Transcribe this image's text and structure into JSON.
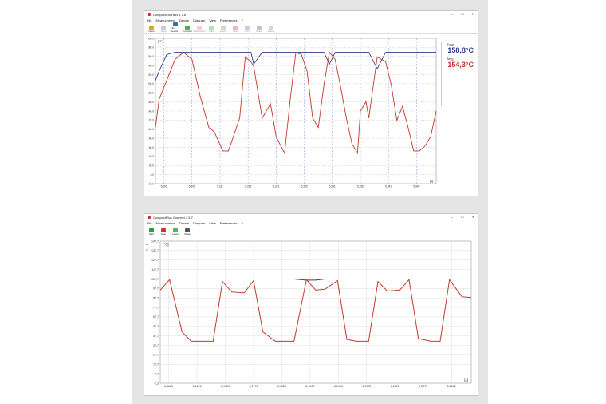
{
  "window1": {
    "title": "CompactConnect 1.7.8",
    "menu": [
      "File",
      "Measurement",
      "Device",
      "Diagram",
      "View",
      "Preferences",
      "?"
    ],
    "toolbar": [
      {
        "label": "Open",
        "icon": "folder-open-icon",
        "enabled": true
      },
      {
        "label": "Save",
        "icon": "save-icon",
        "enabled": false
      },
      {
        "label": "Find Device",
        "icon": "find-device-icon",
        "enabled": true
      },
      {
        "label": "Connect",
        "icon": "connect-icon",
        "enabled": true
      },
      {
        "label": "Disconnect",
        "icon": "disconnect-icon",
        "enabled": false
      },
      {
        "label": "Start",
        "icon": "start-icon",
        "enabled": false
      },
      {
        "label": "Pause",
        "icon": "pause-icon",
        "enabled": false
      },
      {
        "label": "Stop",
        "icon": "stop-icon",
        "enabled": false
      },
      {
        "label": "Info",
        "icon": "info-icon",
        "enabled": false
      },
      {
        "label": "Setup",
        "icon": "setup-icon",
        "enabled": false
      },
      {
        "label": "Delete",
        "icon": "delete-icon",
        "enabled": false
      }
    ],
    "unit": "[°C]",
    "xunit": "[s]",
    "yticks": [
      "300,0",
      "280,0",
      "260,0",
      "240,0",
      "220,0",
      "200,0",
      "180,0",
      "160,0",
      "140,0",
      "120,0",
      "100,0",
      "80,0",
      "60,0",
      "40,0",
      "20,0",
      "0,0",
      "-10,0"
    ],
    "xticks": [
      "5,301",
      "5,306",
      "5,311",
      "5,316",
      "5,321",
      "5,326",
      "5,331",
      "5,336",
      "5,341",
      "5,346"
    ],
    "readout": {
      "label1": "Tmax",
      "value1": "158,8°C",
      "label2": "Tavg",
      "value2": "154,3°C"
    },
    "colors": {
      "max": "#2c3e8c",
      "avg": "#c0392b"
    }
  },
  "window2": {
    "title": "CompactPlus Connect 1.5.7",
    "menu": [
      "File",
      "Measurement",
      "Device",
      "Diagram",
      "View",
      "Preferences",
      "?"
    ],
    "toolbar": [
      {
        "label": "Start",
        "icon": "start-icon",
        "enabled": true
      },
      {
        "label": "Stop",
        "icon": "stop-icon",
        "enabled": true
      },
      {
        "label": "Leave",
        "icon": "leave-icon",
        "enabled": true
      },
      {
        "label": "Setup",
        "icon": "setup-icon",
        "enabled": true
      }
    ],
    "unit": "[°C]",
    "xunit": "[s]",
    "yticks": [
      "147,7",
      "137,7",
      "127,7",
      "117,7",
      "107,7",
      "97,7",
      "87,7",
      "77,7",
      "67,7",
      "57,7",
      "47,7",
      "37,7",
      "27,7",
      "17,7",
      "7,7",
      "-2,3"
    ],
    "xticks": [
      "6,1626",
      "6,1676",
      "6,1726",
      "6,1776",
      "6,1826",
      "6,1876",
      "6,1926",
      "6,1976",
      "6,2026",
      "6,2076",
      "6,2126"
    ]
  },
  "chart_data": [
    {
      "type": "line",
      "title": "",
      "ylabel": "[°C]",
      "xlabel": "[s]",
      "ylim": [
        -10,
        300
      ],
      "grid": true,
      "x_positions": [
        0,
        0.013,
        0.04,
        0.07,
        0.1,
        0.13,
        0.16,
        0.19,
        0.21,
        0.24,
        0.26,
        0.28,
        0.3,
        0.32,
        0.34,
        0.35,
        0.38,
        0.41,
        0.43,
        0.46,
        0.48,
        0.5,
        0.52,
        0.54,
        0.56,
        0.58,
        0.6,
        0.62,
        0.64,
        0.66,
        0.68,
        0.7,
        0.72,
        0.73,
        0.75,
        0.76,
        0.79,
        0.82,
        0.84,
        0.86,
        0.88,
        0.9,
        0.92,
        0.94,
        0.96,
        0.98,
        1.0
      ],
      "series": [
        {
          "name": "max",
          "values": [
            210,
            230,
            265,
            270,
            270,
            270,
            270,
            270,
            270,
            270,
            270,
            270,
            270,
            270,
            270,
            245,
            270,
            270,
            270,
            270,
            270,
            270,
            270,
            270,
            270,
            270,
            270,
            245,
            270,
            270,
            270,
            270,
            270,
            270,
            270,
            270,
            235,
            270,
            270,
            270,
            270,
            270,
            270,
            270,
            270,
            270,
            270
          ]
        },
        {
          "name": "avg",
          "values": [
            110,
            170,
            210,
            255,
            270,
            255,
            175,
            110,
            100,
            60,
            60,
            95,
            130,
            260,
            250,
            240,
            130,
            160,
            90,
            55,
            170,
            270,
            265,
            230,
            130,
            110,
            200,
            270,
            255,
            195,
            130,
            75,
            55,
            145,
            165,
            130,
            260,
            250,
            200,
            125,
            155,
            110,
            60,
            60,
            70,
            90,
            145
          ]
        }
      ]
    },
    {
      "type": "line",
      "title": "",
      "ylabel": "[°C]",
      "xlabel": "[s]",
      "ylim": [
        -2.3,
        147.7
      ],
      "grid": true,
      "x_positions": [
        0,
        0.03,
        0.07,
        0.1,
        0.13,
        0.17,
        0.2,
        0.23,
        0.27,
        0.3,
        0.33,
        0.37,
        0.4,
        0.43,
        0.47,
        0.5,
        0.53,
        0.57,
        0.6,
        0.63,
        0.67,
        0.7,
        0.73,
        0.77,
        0.8,
        0.83,
        0.87,
        0.9,
        0.93,
        0.97,
        1.0
      ],
      "series": [
        {
          "name": "max",
          "values": [
            107.7,
            107.7,
            107.7,
            107.7,
            107.7,
            107.7,
            107.7,
            107.7,
            107.7,
            107.7,
            107.7,
            107.7,
            107.7,
            107.7,
            106.5,
            106.5,
            107.7,
            107.7,
            107.7,
            107.7,
            107.7,
            107.7,
            107.7,
            107.7,
            107.7,
            107.7,
            107.7,
            107.7,
            107.7,
            107.7,
            107.7
          ]
        },
        {
          "name": "avg",
          "values": [
            96,
            107,
            52,
            42,
            42,
            42,
            105,
            94,
            93,
            106,
            52,
            42,
            42,
            42,
            107,
            96,
            97,
            106,
            44,
            42,
            42,
            105,
            95,
            96,
            107,
            45,
            42,
            42,
            107,
            89,
            88
          ]
        }
      ]
    }
  ]
}
